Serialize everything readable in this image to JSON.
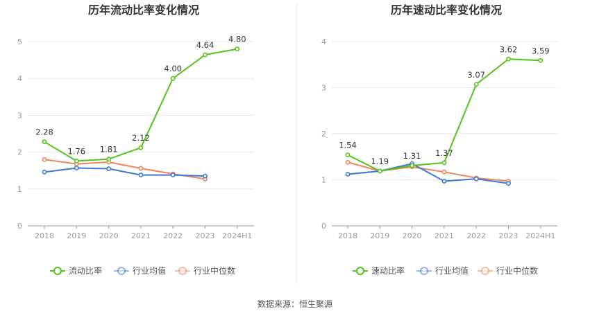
{
  "source_label": "数据来源：恒生聚源",
  "chart_data": [
    {
      "type": "line",
      "title": "历年流动比率变化情况",
      "categories": [
        "2018",
        "2019",
        "2020",
        "2021",
        "2022",
        "2023",
        "2024H1"
      ],
      "ylim": [
        0,
        5
      ],
      "yticks": [
        "0",
        "1",
        "2",
        "3",
        "4",
        "5"
      ],
      "grid": true,
      "legend": "bottom",
      "series": [
        {
          "name": "流动比率",
          "color": "#52c41a",
          "values": [
            2.28,
            1.76,
            1.81,
            2.12,
            4.0,
            4.64,
            4.8
          ],
          "labels": [
            "2.28",
            "1.76",
            "1.81",
            "2.12",
            "4.00",
            "4.64",
            "4.80"
          ]
        },
        {
          "name": "行业均值",
          "color": "#3a78d8",
          "values": [
            1.46,
            1.57,
            1.55,
            1.38,
            1.38,
            1.35,
            null
          ]
        },
        {
          "name": "行业中位数",
          "color": "#f0845a",
          "values": [
            1.8,
            1.68,
            1.73,
            1.56,
            1.41,
            1.27,
            null
          ]
        }
      ]
    },
    {
      "type": "line",
      "title": "历年速动比率变化情况",
      "categories": [
        "2018",
        "2019",
        "2020",
        "2021",
        "2022",
        "2023",
        "2024H1"
      ],
      "ylim": [
        0,
        4
      ],
      "yticks": [
        "0",
        "1",
        "2",
        "3",
        "4"
      ],
      "grid": true,
      "legend": "bottom",
      "series": [
        {
          "name": "速动比率",
          "color": "#52c41a",
          "values": [
            1.54,
            1.19,
            1.31,
            1.37,
            3.07,
            3.62,
            3.59
          ],
          "labels": [
            "1.54",
            "1.19",
            "1.31",
            "1.37",
            "3.07",
            "3.62",
            "3.59"
          ]
        },
        {
          "name": "行业均值",
          "color": "#3a78d8",
          "values": [
            1.12,
            1.19,
            1.35,
            0.97,
            1.02,
            0.92,
            null
          ]
        },
        {
          "name": "行业中位数",
          "color": "#f0845a",
          "values": [
            1.38,
            1.19,
            1.28,
            1.17,
            1.04,
            0.97,
            null
          ]
        }
      ]
    }
  ]
}
